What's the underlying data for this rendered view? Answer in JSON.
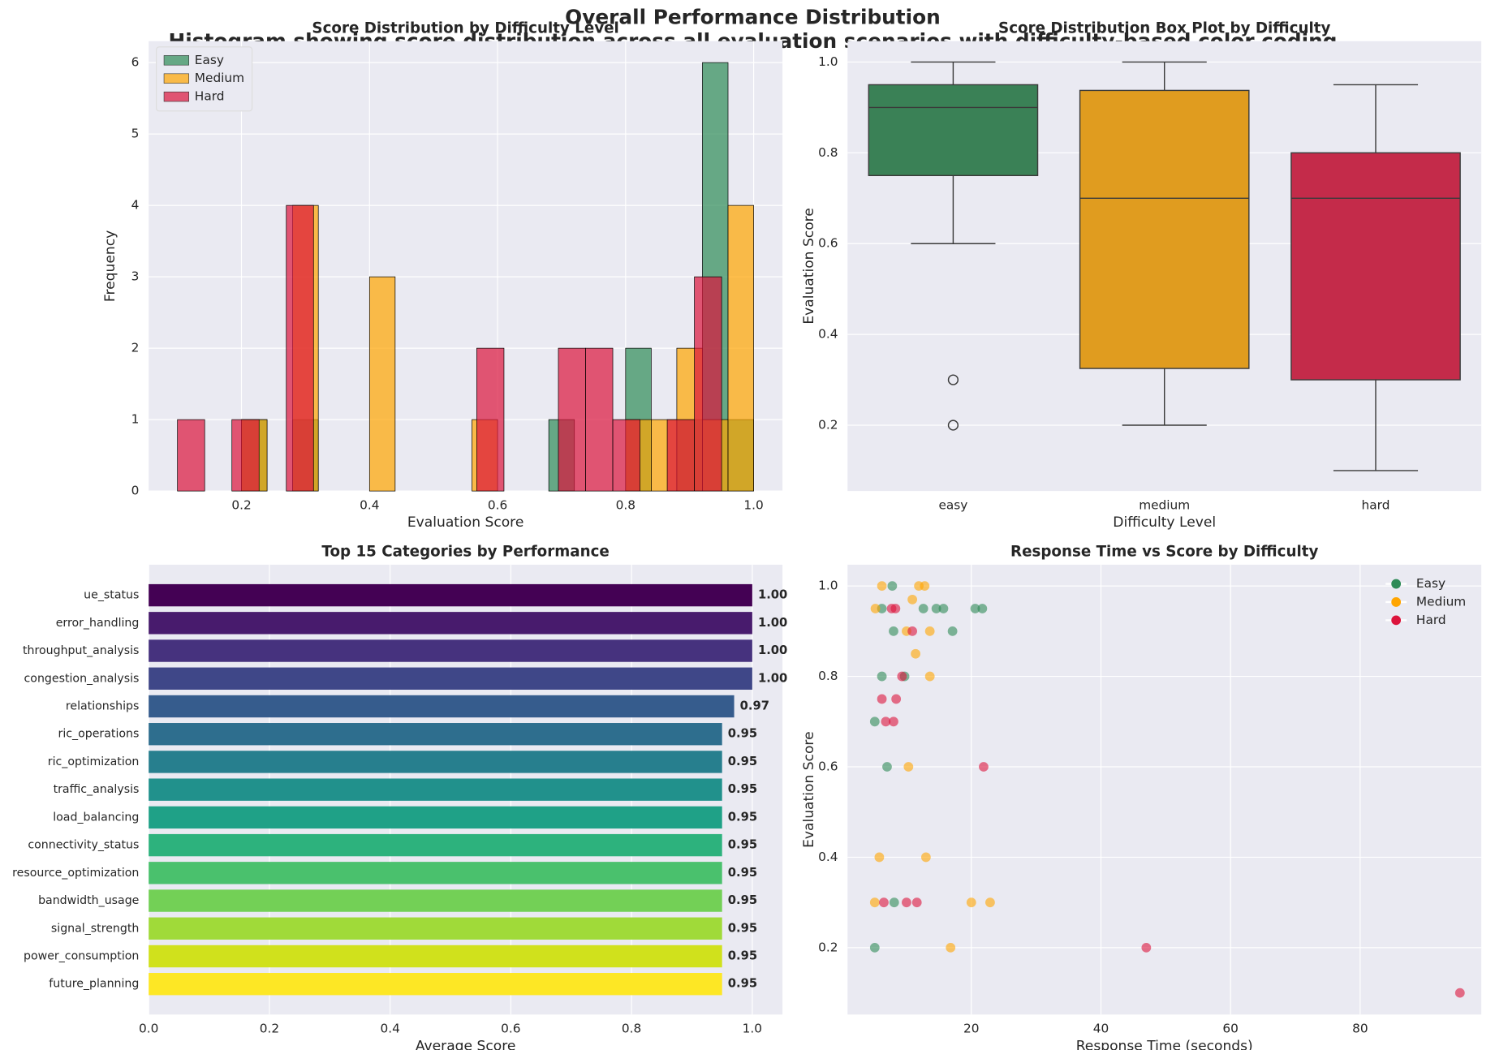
{
  "title": "Overall Performance Distribution",
  "subtitle": "Histogram showing score distribution across all evaluation scenarios with difficulty-based color coding",
  "chart_data": [
    {
      "type": "histogram",
      "title": "Score Distribution by Difficulty Level",
      "x_label": "Evaluation Score",
      "y_label": "Frequency",
      "xlim": [
        0.055,
        1.045
      ],
      "ylim": [
        0,
        6.3
      ],
      "xticks": [
        0.2,
        0.4,
        0.6,
        0.8,
        {
          "value": 1,
          "label": "1.0"
        }
      ],
      "yticks": [
        0,
        1,
        2,
        3,
        4,
        5,
        6
      ],
      "grid": true,
      "legend": "upper left",
      "series": [
        {
          "name": "Easy",
          "color": "#2e8b57",
          "bins": [
            0.2,
            0.24,
            0.28,
            0.32,
            0.36,
            0.4,
            0.44,
            0.48,
            0.52,
            0.56,
            0.6,
            0.64,
            0.68,
            0.72,
            0.76,
            0.8,
            0.84,
            0.88,
            0.92,
            0.96,
            1.0
          ],
          "values": [
            1,
            0,
            1,
            0,
            0,
            0,
            0,
            0,
            0,
            0,
            0,
            0,
            1,
            0,
            0,
            2,
            0,
            1,
            6,
            1
          ]
        },
        {
          "name": "Medium",
          "color": "#ffa500",
          "bins": [
            0.2,
            0.24,
            0.28,
            0.32,
            0.36,
            0.4,
            0.44,
            0.48,
            0.52,
            0.56,
            0.6,
            0.64,
            0.68,
            0.72,
            0.76,
            0.8,
            0.84,
            0.88,
            0.92,
            0.96,
            1.0
          ],
          "values": [
            1,
            0,
            4,
            0,
            0,
            3,
            0,
            0,
            0,
            1,
            0,
            0,
            0,
            0,
            0,
            1,
            1,
            2,
            1,
            4
          ]
        },
        {
          "name": "Hard",
          "color": "#dc143c",
          "bins": [
            0.1,
            0.1425,
            0.185,
            0.2275,
            0.27,
            0.3125,
            0.355,
            0.3975,
            0.44,
            0.4825,
            0.525,
            0.5675,
            0.61,
            0.6525,
            0.695,
            0.7375,
            0.78,
            0.8225,
            0.865,
            0.9075,
            0.95
          ],
          "values": [
            1,
            0,
            1,
            0,
            4,
            0,
            0,
            0,
            0,
            0,
            0,
            2,
            0,
            0,
            2,
            2,
            1,
            0,
            1,
            3
          ]
        }
      ]
    },
    {
      "type": "box",
      "title": "Score Distribution Box Plot by Difficulty",
      "x_label": "Difficulty Level",
      "y_label": "Evaluation Score",
      "categories": [
        "easy",
        "medium",
        "hard"
      ],
      "colors": [
        "#3a8156",
        "#e09c1f",
        "#c42b4a"
      ],
      "ylim": [
        0.055,
        1.046
      ],
      "yticks": [
        0.2,
        0.4,
        0.6,
        0.8,
        {
          "value": 1,
          "label": "1.0"
        }
      ],
      "grid": true,
      "boxes": [
        {
          "whislo": 0.6,
          "q1": 0.75,
          "med": 0.9,
          "q3": 0.95,
          "whishi": 1.0,
          "fliers": [
            0.3,
            0.2
          ]
        },
        {
          "whislo": 0.2,
          "q1": 0.325,
          "med": 0.7,
          "q3": 0.9375,
          "whishi": 1.0,
          "fliers": []
        },
        {
          "whislo": 0.1,
          "q1": 0.3,
          "med": 0.7,
          "q3": 0.8,
          "whishi": 0.95,
          "fliers": []
        }
      ]
    },
    {
      "type": "barh",
      "title": "Top 15 Categories by Performance",
      "x_label": "Average Score",
      "xlim": [
        0,
        1.05
      ],
      "xticks": [
        {
          "value": 0,
          "label": "0.0"
        },
        0.2,
        0.4,
        0.6,
        0.8,
        {
          "value": 1,
          "label": "1.0"
        }
      ],
      "grid": true,
      "categories": [
        "ue_status",
        "error_handling",
        "throughput_analysis",
        "congestion_analysis",
        "relationships",
        "ric_operations",
        "ric_optimization",
        "traffic_analysis",
        "load_balancing",
        "connectivity_status",
        "resource_optimization",
        "bandwidth_usage",
        "signal_strength",
        "power_consumption",
        "future_planning"
      ],
      "values": [
        1,
        1,
        1,
        1,
        0.97,
        0.95,
        0.95,
        0.95,
        0.95,
        0.95,
        0.95,
        0.95,
        0.95,
        0.95,
        0.95
      ],
      "value_labels": [
        "1.00",
        "1.00",
        "1.00",
        "1.00",
        "0.97",
        "0.95",
        "0.95",
        "0.95",
        "0.95",
        "0.95",
        "0.95",
        "0.95",
        "0.95",
        "0.95",
        "0.95"
      ],
      "colors": [
        "#440154",
        "#481b6d",
        "#46327e",
        "#3f4788",
        "#365c8d",
        "#2e6e8e",
        "#277f8e",
        "#21918c",
        "#1fa187",
        "#2db27d",
        "#4ac16d",
        "#73d056",
        "#a0da39",
        "#d0e11c",
        "#fde725"
      ]
    },
    {
      "type": "scatter",
      "title": "Response Time vs Score by Difficulty",
      "x_label": "Response Time (seconds)",
      "y_label": "Evaluation Score",
      "xlim": [
        0.9,
        98.7
      ],
      "ylim": [
        0.052,
        1.047
      ],
      "xticks": [
        20,
        40,
        60,
        80
      ],
      "yticks": [
        0.2,
        0.4,
        0.6,
        0.8,
        {
          "value": 1,
          "label": "1.0"
        }
      ],
      "grid": true,
      "legend": "upper right",
      "series": [
        {
          "name": "Easy",
          "color": "#2e8b57",
          "x": [
            7.8,
            6.2,
            12.6,
            14.6,
            15.7,
            20.6,
            21.7,
            8.0,
            17.1,
            6.2,
            9.7,
            5.1,
            7.0,
            8.1,
            5.1
          ],
          "y": [
            1.0,
            0.95,
            0.95,
            0.95,
            0.95,
            0.95,
            0.95,
            0.9,
            0.9,
            0.8,
            0.8,
            0.7,
            0.6,
            0.3,
            0.2
          ]
        },
        {
          "name": "Medium",
          "color": "#ffa500",
          "x": [
            6.2,
            11.9,
            12.8,
            5.2,
            10.9,
            10.0,
            13.6,
            11.4,
            13.6,
            10.3,
            5.8,
            13.0,
            5.1,
            20.0,
            22.9,
            16.8
          ],
          "y": [
            1.0,
            1.0,
            1.0,
            0.95,
            0.97,
            0.9,
            0.9,
            0.85,
            0.8,
            0.6,
            0.4,
            0.4,
            0.3,
            0.3,
            0.3,
            0.2
          ]
        },
        {
          "name": "Hard",
          "color": "#dc143c",
          "x": [
            7.7,
            8.3,
            10.9,
            9.3,
            6.2,
            8.4,
            6.8,
            8.0,
            21.9,
            6.5,
            10.0,
            11.6,
            47.0,
            95.4
          ],
          "y": [
            0.95,
            0.95,
            0.9,
            0.8,
            0.75,
            0.75,
            0.7,
            0.7,
            0.6,
            0.3,
            0.3,
            0.3,
            0.2,
            0.1
          ]
        }
      ]
    }
  ]
}
